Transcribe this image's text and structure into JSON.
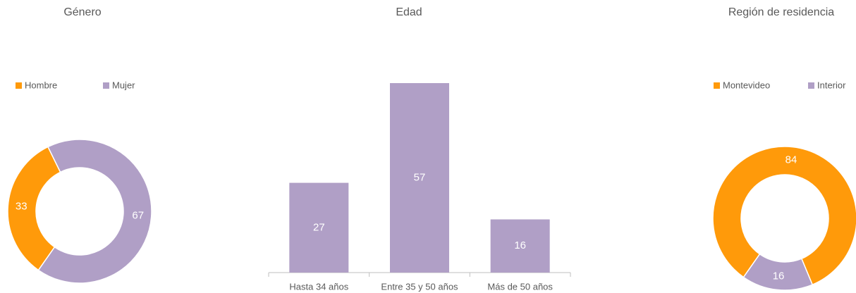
{
  "chart_data": [
    {
      "type": "donut",
      "title": "Género",
      "categories": [
        "Hombre",
        "Mujer"
      ],
      "values": [
        33,
        67
      ],
      "colors": [
        "#ff9a0a",
        "#b09fc6"
      ]
    },
    {
      "type": "bar",
      "title": "Edad",
      "categories": [
        "Hasta 34 años",
        "Entre 35 y 50 años",
        "Más de 50 años"
      ],
      "values": [
        27,
        57,
        16
      ],
      "color": "#b09fc6"
    },
    {
      "type": "donut",
      "title": "Región de residencia",
      "categories": [
        "Montevideo",
        "Interior"
      ],
      "values": [
        84,
        16
      ],
      "colors": [
        "#ff9a0a",
        "#b09fc6"
      ]
    }
  ]
}
